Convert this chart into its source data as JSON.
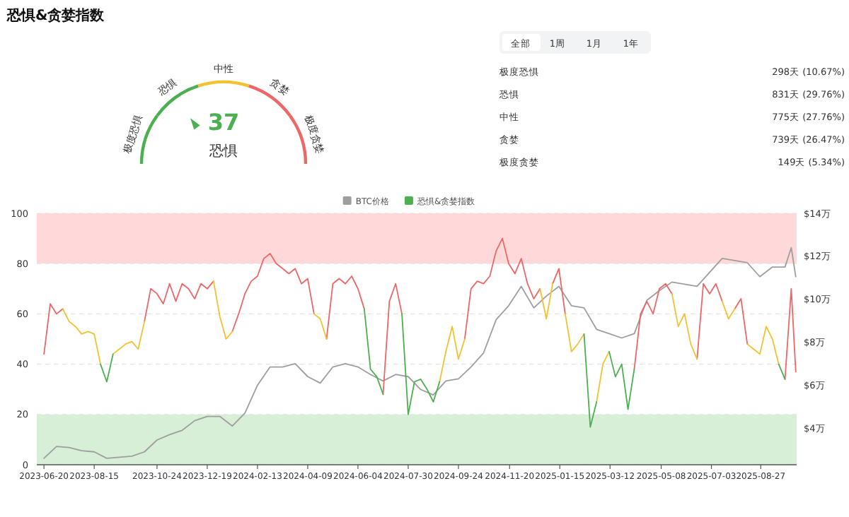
{
  "chart_data": [
    {
      "type": "other",
      "title": "恐惧&贪婪指数",
      "categories": [
        "极度恐惧",
        "恐惧",
        "中性",
        "贪婪",
        "极度贪婪"
      ],
      "colors": [
        "#4caf50",
        "#4caf50",
        "#f2c230",
        "#ee6666",
        "#ee6666"
      ],
      "needle": "恐惧",
      "annotations": [
        "37"
      ]
    },
    {
      "type": "other",
      "annotations": [
        "全部",
        "1周",
        "1月",
        "1年",
        "极度恐惧",
        "298天 (10.67%)",
        "恐惧",
        "831天 (29.76%)",
        "中性",
        "775天 (27.76%)",
        "贪婪",
        "739天 (26.47%)",
        "极度贪婪",
        "149天 (5.34%)"
      ]
    },
    {
      "type": "line",
      "legend": "top",
      "grid": "y",
      "marker": "none",
      "xlim": [
        "2023-06-12",
        "2025-10-06"
      ],
      "x": [
        "2023-06-20",
        "2023-06-27",
        "2023-07-04",
        "2023-07-11",
        "2023-07-18",
        "2023-07-25",
        "2023-08-01",
        "2023-08-08",
        "2023-08-15",
        "2023-08-22",
        "2023-08-29",
        "2023-09-05",
        "2023-09-12",
        "2023-09-19",
        "2023-09-26",
        "2023-10-03",
        "2023-10-10",
        "2023-10-17",
        "2023-10-24",
        "2023-10-31",
        "2023-11-07",
        "2023-11-14",
        "2023-11-21",
        "2023-11-28",
        "2023-12-05",
        "2023-12-12",
        "2023-12-19",
        "2023-12-26",
        "2024-01-02",
        "2024-01-09",
        "2024-01-16",
        "2024-01-23",
        "2024-01-30",
        "2024-02-06",
        "2024-02-13",
        "2024-02-20",
        "2024-02-27",
        "2024-03-05",
        "2024-03-12",
        "2024-03-19",
        "2024-03-26",
        "2024-04-02",
        "2024-04-09",
        "2024-04-16",
        "2024-04-23",
        "2024-04-30",
        "2024-05-07",
        "2024-05-14",
        "2024-05-21",
        "2024-05-28",
        "2024-06-04",
        "2024-06-11",
        "2024-06-18",
        "2024-06-25",
        "2024-07-02",
        "2024-07-09",
        "2024-07-16",
        "2024-07-23",
        "2024-07-30",
        "2024-08-06",
        "2024-08-13",
        "2024-08-20",
        "2024-08-27",
        "2024-09-03",
        "2024-09-10",
        "2024-09-17",
        "2024-09-24",
        "2024-10-01",
        "2024-10-08",
        "2024-10-15",
        "2024-10-22",
        "2024-10-29",
        "2024-11-05",
        "2024-11-12",
        "2024-11-19",
        "2024-11-26",
        "2024-12-03",
        "2024-12-10",
        "2024-12-17",
        "2024-12-24",
        "2024-12-31",
        "2025-01-07",
        "2025-01-14",
        "2025-01-21",
        "2025-01-28",
        "2025-02-04",
        "2025-02-11",
        "2025-02-18",
        "2025-02-25",
        "2025-03-04",
        "2025-03-11",
        "2025-03-18",
        "2025-03-25",
        "2025-04-01",
        "2025-04-08",
        "2025-04-15",
        "2025-04-22",
        "2025-04-29",
        "2025-05-06",
        "2025-05-13",
        "2025-05-20",
        "2025-05-27",
        "2025-06-03",
        "2025-06-10",
        "2025-06-17",
        "2025-06-24",
        "2025-07-01",
        "2025-07-08",
        "2025-07-15",
        "2025-07-22",
        "2025-07-29",
        "2025-08-05",
        "2025-08-12",
        "2025-08-19",
        "2025-08-26",
        "2025-09-02",
        "2025-09-09",
        "2025-09-16",
        "2025-09-23",
        "2025-09-30",
        "2025-10-05"
      ],
      "xticks": [
        "2023-06-20",
        "2023-08-15",
        "2023-10-24",
        "2023-12-19",
        "2024-02-13",
        "2024-04-09",
        "2024-06-04",
        "2024-07-30",
        "2024-09-24",
        "2024-11-20",
        "2025-01-15",
        "2025-03-12",
        "2025-05-08",
        "2025-07-03",
        "2025-08-27"
      ],
      "ylim": [
        0,
        100
      ],
      "yticks": [
        0,
        20,
        40,
        60,
        80,
        100
      ],
      "y2lim": [
        2.3,
        14
      ],
      "y2ticks": [
        {
          "value": 4,
          "label": "$4万"
        },
        {
          "value": 6,
          "label": "$6万"
        },
        {
          "value": 8,
          "label": "$8万"
        },
        {
          "value": 10,
          "label": "$10万"
        },
        {
          "value": 12,
          "label": "$12万"
        },
        {
          "value": 14,
          "label": "$14万"
        }
      ],
      "bands": [
        {
          "axis": "y",
          "from": 0,
          "to": 20,
          "color": "#d6efd6"
        },
        {
          "axis": "y",
          "from": 80,
          "to": 100,
          "color": "#ffd9d9"
        }
      ],
      "series": [
        {
          "name": "BTC价格",
          "color": "#9e9e9e",
          "axis": "y2",
          "x": [
            "2023-06-20",
            "2023-07-04",
            "2023-07-18",
            "2023-08-01",
            "2023-08-15",
            "2023-08-29",
            "2023-09-12",
            "2023-09-26",
            "2023-10-10",
            "2023-10-24",
            "2023-11-07",
            "2023-11-21",
            "2023-12-05",
            "2023-12-19",
            "2024-01-02",
            "2024-01-16",
            "2024-01-30",
            "2024-02-13",
            "2024-02-27",
            "2024-03-12",
            "2024-03-26",
            "2024-04-09",
            "2024-04-23",
            "2024-05-07",
            "2024-05-21",
            "2024-06-04",
            "2024-06-18",
            "2024-07-02",
            "2024-07-16",
            "2024-07-30",
            "2024-08-13",
            "2024-08-27",
            "2024-09-10",
            "2024-09-24",
            "2024-10-08",
            "2024-10-22",
            "2024-11-05",
            "2024-11-19",
            "2024-12-03",
            "2024-12-17",
            "2024-12-31",
            "2025-01-14",
            "2025-01-28",
            "2025-02-11",
            "2025-02-25",
            "2025-03-11",
            "2025-03-25",
            "2025-04-08",
            "2025-04-22",
            "2025-05-06",
            "2025-05-20",
            "2025-06-03",
            "2025-06-17",
            "2025-07-01",
            "2025-07-15",
            "2025-07-29",
            "2025-08-12",
            "2025-08-26",
            "2025-09-09",
            "2025-09-23",
            "2025-09-30",
            "2025-10-05"
          ],
          "values": [
            2.6,
            3.15,
            3.1,
            2.95,
            2.9,
            2.6,
            2.65,
            2.7,
            2.9,
            3.45,
            3.7,
            3.9,
            4.35,
            4.55,
            4.55,
            4.1,
            4.7,
            6.0,
            6.85,
            6.85,
            7.0,
            6.4,
            6.1,
            6.85,
            7.0,
            6.85,
            6.5,
            6.2,
            6.5,
            6.4,
            5.8,
            5.55,
            6.2,
            6.3,
            6.85,
            7.5,
            9.05,
            9.7,
            10.6,
            9.6,
            10.15,
            10.6,
            9.7,
            9.6,
            8.6,
            8.4,
            8.2,
            8.4,
            9.95,
            10.4,
            10.8,
            10.7,
            10.6,
            11.25,
            11.9,
            11.8,
            11.7,
            11.05,
            11.5,
            11.5,
            12.4,
            11.05
          ]
        },
        {
          "color": "#ee6666",
          "values": [
            44,
            64,
            60,
            62,
            null,
            null,
            null,
            null,
            null,
            null,
            null,
            null,
            null,
            null,
            null,
            null,
            57,
            70,
            68,
            64,
            72,
            65,
            72,
            70,
            66,
            72,
            70,
            73,
            null,
            null,
            53,
            60,
            68,
            73,
            75,
            82,
            84,
            80,
            78,
            76,
            78,
            72,
            74,
            60,
            null,
            50,
            72,
            74,
            72,
            75,
            70,
            62,
            null,
            null,
            28,
            65,
            72,
            60,
            null,
            null,
            null,
            null,
            null,
            null,
            null,
            null,
            null,
            50,
            70,
            73,
            72,
            75,
            85,
            90,
            80,
            76,
            82,
            72,
            66,
            70,
            null,
            72,
            78,
            60,
            null,
            null,
            null,
            null,
            null,
            null,
            null,
            null,
            null,
            null,
            38,
            60,
            65,
            60,
            70,
            72,
            68,
            null,
            null,
            null,
            42,
            72,
            68,
            72,
            65,
            null,
            62,
            66,
            48,
            null,
            null,
            null,
            null,
            null,
            34,
            70,
            37
          ]
        },
        {
          "color": "#f2c230",
          "values": [
            null,
            null,
            null,
            62,
            57,
            55,
            52,
            53,
            52,
            40,
            null,
            44,
            46,
            48,
            49,
            46,
            57,
            null,
            null,
            null,
            null,
            null,
            null,
            null,
            null,
            null,
            null,
            73,
            59,
            50,
            53,
            null,
            null,
            null,
            null,
            null,
            null,
            null,
            null,
            null,
            null,
            null,
            null,
            60,
            58,
            50,
            null,
            null,
            null,
            null,
            null,
            null,
            null,
            null,
            null,
            null,
            null,
            null,
            null,
            null,
            null,
            null,
            null,
            33,
            45,
            55,
            42,
            50,
            null,
            null,
            null,
            null,
            null,
            null,
            null,
            null,
            null,
            null,
            null,
            70,
            58,
            72,
            null,
            60,
            45,
            48,
            52,
            null,
            25,
            40,
            45,
            null,
            null,
            null,
            null,
            null,
            null,
            null,
            null,
            null,
            68,
            55,
            60,
            48,
            42,
            null,
            null,
            null,
            65,
            58,
            62,
            null,
            48,
            46,
            44,
            55,
            50,
            40,
            null,
            null,
            null
          ]
        },
        {
          "name": "恐惧&贪婪指数",
          "color": "#4caf50",
          "values": [
            null,
            null,
            null,
            null,
            null,
            null,
            null,
            null,
            null,
            40,
            33,
            44,
            null,
            null,
            null,
            null,
            null,
            null,
            null,
            null,
            null,
            null,
            null,
            null,
            null,
            null,
            null,
            null,
            null,
            null,
            null,
            null,
            null,
            null,
            null,
            null,
            null,
            null,
            null,
            null,
            null,
            null,
            null,
            null,
            null,
            null,
            null,
            null,
            null,
            null,
            null,
            62,
            38,
            35,
            28,
            null,
            null,
            60,
            20,
            33,
            34,
            30,
            25,
            33,
            null,
            null,
            null,
            null,
            null,
            null,
            null,
            null,
            null,
            null,
            null,
            null,
            null,
            null,
            null,
            null,
            null,
            null,
            null,
            null,
            null,
            null,
            52,
            15,
            25,
            null,
            45,
            35,
            40,
            22,
            38,
            null,
            null,
            null,
            null,
            null,
            null,
            null,
            null,
            null,
            null,
            null,
            null,
            null,
            null,
            null,
            null,
            null,
            null,
            null,
            null,
            null,
            null,
            40,
            34,
            null,
            null
          ]
        }
      ]
    }
  ]
}
